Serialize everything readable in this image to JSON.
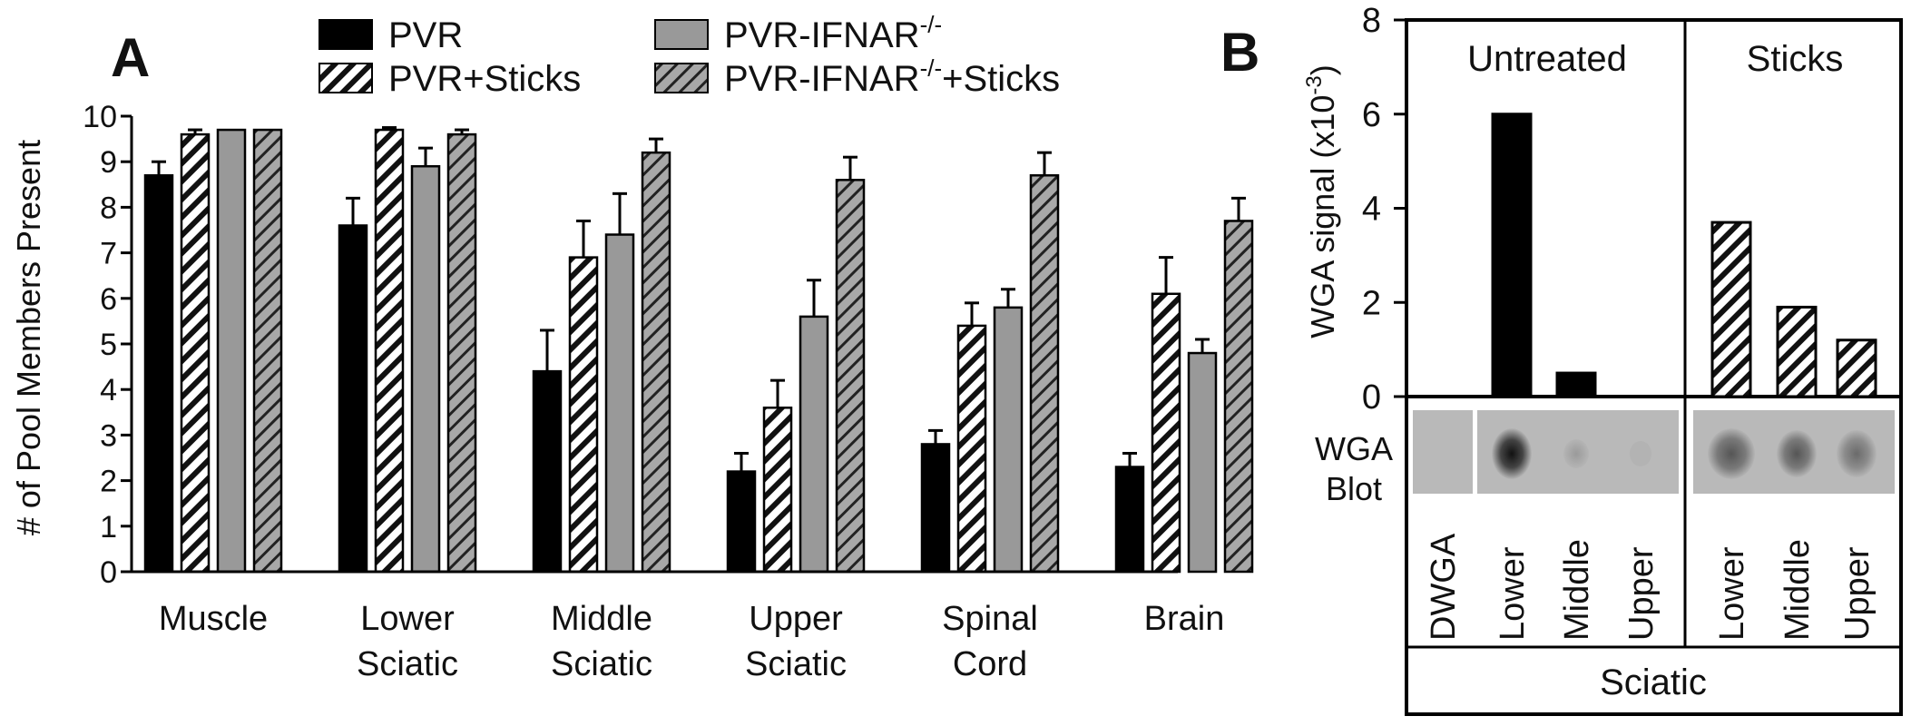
{
  "panel_a": {
    "label": "A",
    "legend": [
      {
        "name": "PVR",
        "sup": "",
        "tail": ""
      },
      {
        "name": "PVR+Sticks",
        "sup": "",
        "tail": ""
      },
      {
        "name": "PVR-IFNAR",
        "sup": "-/-",
        "tail": ""
      },
      {
        "name": "PVR-IFNAR",
        "sup": "-/-",
        "tail": "+Sticks"
      }
    ]
  },
  "panel_b": {
    "label": "B",
    "group_untreated": "Untreated",
    "group_sticks": "Sticks",
    "ylabel_main": "WGA signal (x10",
    "ylabel_sup": "-3",
    "ylabel_tail": ")",
    "blot_label_line1": "WGA",
    "blot_label_line2": "Blot",
    "lanes": [
      "DWGA",
      "Lower",
      "Middle",
      "Upper",
      "Lower",
      "Middle",
      "Upper"
    ],
    "footer": "Sciatic"
  },
  "chart_data": [
    {
      "type": "bar",
      "ylabel": "# of Pool Members Present",
      "ylim": [
        0,
        10
      ],
      "yticks": [
        0,
        1,
        2,
        3,
        4,
        5,
        6,
        7,
        8,
        9,
        10
      ],
      "categories": [
        [
          "Muscle"
        ],
        [
          "Lower",
          "Sciatic"
        ],
        [
          "Middle",
          "Sciatic"
        ],
        [
          "Upper",
          "Sciatic"
        ],
        [
          "Spinal",
          "Cord"
        ],
        [
          "Brain"
        ]
      ],
      "series": [
        {
          "name": "PVR",
          "fill": "#000000",
          "pattern": "solid",
          "values": [
            8.7,
            7.6,
            4.4,
            2.2,
            2.8,
            2.3
          ],
          "errors": [
            0.3,
            0.6,
            0.9,
            0.4,
            0.3,
            0.3
          ]
        },
        {
          "name": "PVR+Sticks",
          "fill": "#ffffff",
          "pattern": "hatch",
          "values": [
            9.6,
            9.7,
            6.9,
            3.6,
            5.4,
            6.1
          ],
          "errors": [
            0.1,
            0.05,
            0.8,
            0.6,
            0.5,
            0.8
          ]
        },
        {
          "name": "PVR-IFNAR-/-",
          "fill": "#999999",
          "pattern": "solid",
          "values": [
            9.7,
            8.9,
            7.4,
            5.6,
            5.8,
            4.8
          ],
          "errors": [
            0.0,
            0.4,
            0.9,
            0.8,
            0.4,
            0.3
          ]
        },
        {
          "name": "PVR-IFNAR-/-+Sticks",
          "fill": "#a6a6a6",
          "pattern": "hatch",
          "values": [
            9.7,
            9.6,
            9.2,
            8.6,
            8.7,
            7.7
          ],
          "errors": [
            0.0,
            0.1,
            0.3,
            0.5,
            0.5,
            0.5
          ]
        }
      ],
      "legend_position": "top"
    },
    {
      "type": "bar",
      "ylabel": "WGA signal (x10-3)",
      "ylim": [
        0,
        8
      ],
      "yticks": [
        0,
        2,
        4,
        6,
        8
      ],
      "categories": [
        "DWGA",
        "Lower",
        "Middle",
        "Upper",
        "Lower",
        "Middle",
        "Upper"
      ],
      "groups": [
        "Untreated",
        "Sticks"
      ],
      "values": [
        0,
        6.0,
        0.5,
        0,
        3.7,
        1.9,
        1.2
      ],
      "patterns": [
        "solid",
        "solid",
        "solid",
        "solid",
        "hatch",
        "hatch",
        "hatch"
      ]
    }
  ]
}
